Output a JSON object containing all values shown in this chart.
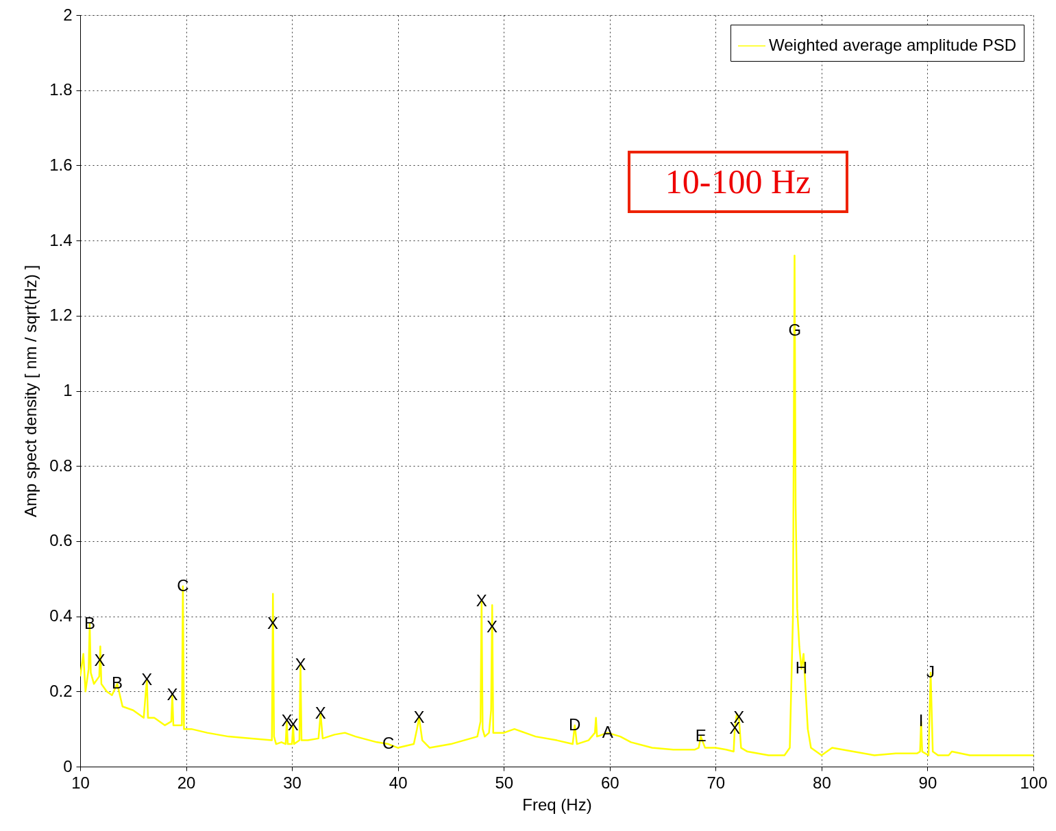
{
  "chart_data": {
    "type": "line",
    "xlabel": "Freq (Hz)",
    "ylabel": "Amp spect density [ nm / sqrt(Hz) ]",
    "series": [
      {
        "name": "Weighted average amplitude PSD",
        "color": "#ffff00",
        "x": [
          10,
          10.3,
          10.5,
          10.8,
          10.9,
          11.0,
          11.3,
          11.8,
          11.9,
          12.0,
          12.5,
          13.0,
          13.5,
          14.0,
          15.0,
          16.0,
          16.2,
          16.3,
          16.4,
          17.0,
          18.0,
          18.6,
          18.7,
          18.8,
          19.6,
          19.7,
          19.8,
          20.5,
          22,
          24,
          26,
          28.1,
          28.2,
          28.3,
          28.5,
          29.0,
          29.4,
          29.5,
          29.6,
          30.0,
          30.1,
          30.2,
          30.7,
          30.8,
          30.9,
          31.5,
          32.5,
          32.7,
          32.9,
          34,
          35,
          36,
          38,
          39.1,
          40,
          41.5,
          41.8,
          42.0,
          42.3,
          43,
          45,
          47.5,
          47.8,
          47.9,
          48.0,
          48.2,
          48.6,
          48.8,
          48.9,
          49.0,
          49.2,
          50,
          51,
          52,
          53,
          55,
          56.5,
          56.7,
          56.9,
          58,
          58.6,
          58.7,
          58.8,
          59.8,
          61,
          62,
          64,
          66,
          68,
          68.4,
          68.6,
          69,
          70,
          71,
          71.7,
          71.8,
          72.0,
          72.2,
          72.4,
          73,
          75,
          76.5,
          77.0,
          77.3,
          77.45,
          77.55,
          77.7,
          77.9,
          78.1,
          78.3,
          78.7,
          79,
          80,
          81,
          83,
          85,
          87,
          89,
          89.3,
          89.4,
          89.5,
          90.1,
          90.3,
          90.5,
          91,
          92,
          92.3,
          94,
          96,
          98,
          100
        ],
        "values": [
          0.24,
          0.3,
          0.2,
          0.26,
          0.38,
          0.25,
          0.22,
          0.24,
          0.32,
          0.22,
          0.2,
          0.19,
          0.22,
          0.16,
          0.15,
          0.13,
          0.2,
          0.23,
          0.13,
          0.13,
          0.11,
          0.12,
          0.19,
          0.11,
          0.11,
          0.48,
          0.1,
          0.1,
          0.09,
          0.08,
          0.075,
          0.07,
          0.46,
          0.08,
          0.06,
          0.065,
          0.06,
          0.12,
          0.06,
          0.06,
          0.11,
          0.06,
          0.07,
          0.27,
          0.07,
          0.07,
          0.075,
          0.14,
          0.075,
          0.085,
          0.09,
          0.08,
          0.065,
          0.06,
          0.05,
          0.06,
          0.1,
          0.13,
          0.07,
          0.05,
          0.06,
          0.08,
          0.12,
          0.44,
          0.1,
          0.08,
          0.09,
          0.15,
          0.43,
          0.09,
          0.09,
          0.09,
          0.1,
          0.09,
          0.08,
          0.07,
          0.06,
          0.11,
          0.06,
          0.07,
          0.09,
          0.13,
          0.08,
          0.09,
          0.08,
          0.065,
          0.05,
          0.045,
          0.045,
          0.05,
          0.08,
          0.05,
          0.05,
          0.045,
          0.04,
          0.1,
          0.14,
          0.13,
          0.05,
          0.04,
          0.03,
          0.03,
          0.05,
          0.4,
          1.36,
          0.7,
          0.42,
          0.32,
          0.26,
          0.3,
          0.1,
          0.05,
          0.03,
          0.05,
          0.04,
          0.03,
          0.035,
          0.035,
          0.04,
          0.12,
          0.04,
          0.03,
          0.25,
          0.04,
          0.03,
          0.03,
          0.04,
          0.03,
          0.03,
          0.03,
          0.03
        ]
      }
    ],
    "xlim": [
      10,
      100
    ],
    "xticks": [
      10,
      20,
      30,
      40,
      50,
      60,
      70,
      80,
      90,
      100
    ],
    "ylim": [
      0,
      2
    ],
    "yticks": [
      0,
      0.2,
      0.4,
      0.6,
      0.8,
      1,
      1.2,
      1.4,
      1.6,
      1.8,
      2
    ],
    "grid": true,
    "legend": "top right",
    "line_style": "solid",
    "marker": "none",
    "annotations": [
      {
        "text": "B",
        "x": 10.9,
        "y": 0.38
      },
      {
        "text": "X",
        "x": 11.85,
        "y": 0.28
      },
      {
        "text": "B",
        "x": 13.5,
        "y": 0.22
      },
      {
        "text": "X",
        "x": 16.3,
        "y": 0.23
      },
      {
        "text": "X",
        "x": 18.7,
        "y": 0.19
      },
      {
        "text": "C",
        "x": 19.7,
        "y": 0.48
      },
      {
        "text": "X",
        "x": 28.18,
        "y": 0.38
      },
      {
        "text": "X",
        "x": 29.5,
        "y": 0.12
      },
      {
        "text": "X",
        "x": 30.1,
        "y": 0.11
      },
      {
        "text": "X",
        "x": 30.8,
        "y": 0.27
      },
      {
        "text": "X",
        "x": 32.7,
        "y": 0.14
      },
      {
        "text": "C",
        "x": 39.1,
        "y": 0.06
      },
      {
        "text": "X",
        "x": 42.0,
        "y": 0.13
      },
      {
        "text": "X",
        "x": 47.9,
        "y": 0.44
      },
      {
        "text": "X",
        "x": 48.88,
        "y": 0.37
      },
      {
        "text": "D",
        "x": 56.7,
        "y": 0.11
      },
      {
        "text": "A",
        "x": 59.8,
        "y": 0.09
      },
      {
        "text": "E",
        "x": 68.6,
        "y": 0.08
      },
      {
        "text": "X",
        "x": 71.8,
        "y": 0.1
      },
      {
        "text": "X",
        "x": 72.2,
        "y": 0.13
      },
      {
        "text": "G",
        "x": 77.48,
        "y": 1.16
      },
      {
        "text": "H",
        "x": 78.1,
        "y": 0.26
      },
      {
        "text": "I",
        "x": 89.4,
        "y": 0.12
      },
      {
        "text": "J",
        "x": 90.3,
        "y": 0.25
      },
      "10-100 Hz"
    ]
  }
}
